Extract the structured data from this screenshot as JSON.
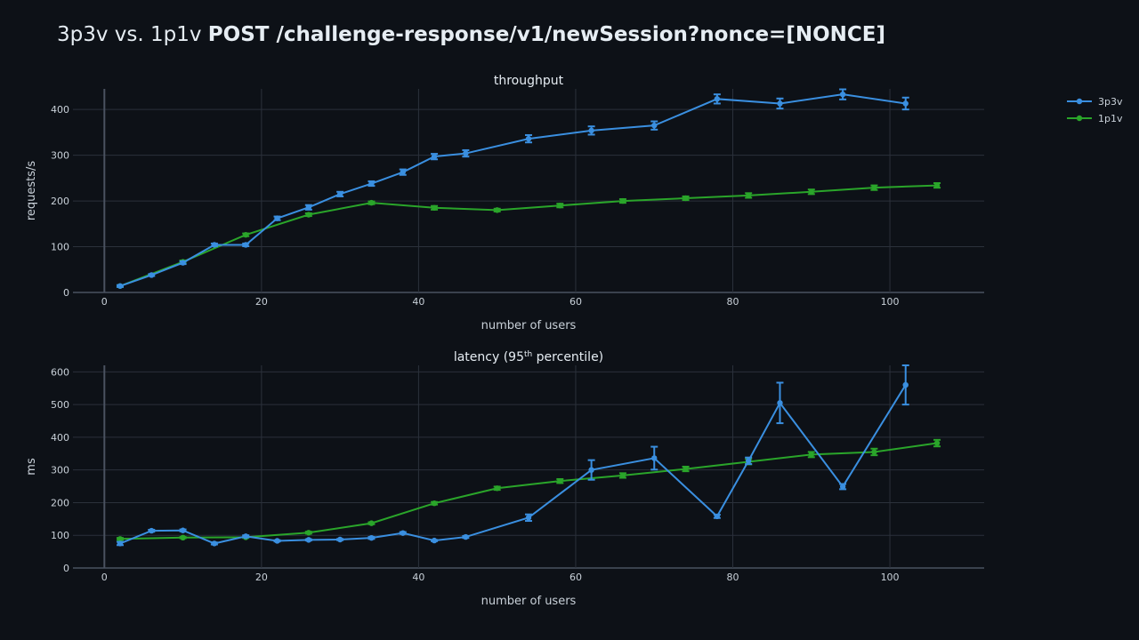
{
  "title": {
    "prefix": "3p3v vs. 1p1v",
    "endpoint": "POST /challenge-response/v1/newSession?nonce=[NONCE]"
  },
  "colors": {
    "background": "#0d1117",
    "grid": "#2b313b",
    "zeroline": "#4a5260",
    "3p3v": "#3a8fe0",
    "1p1v": "#2aa52a"
  },
  "legend": [
    "3p3v",
    "1p1v"
  ],
  "chart_data": [
    {
      "type": "line",
      "title": "throughput",
      "xlabel": "number of users",
      "ylabel": "requests/s",
      "xlim": [
        -4,
        112
      ],
      "ylim": [
        0,
        445
      ],
      "xticks": [
        0,
        20,
        40,
        60,
        80,
        100
      ],
      "yticks": [
        0,
        100,
        200,
        300,
        400
      ],
      "grid": true,
      "legend_position": "top-right",
      "series": [
        {
          "name": "3p3v",
          "x": [
            2,
            6,
            10,
            14,
            18,
            22,
            26,
            30,
            34,
            38,
            42,
            46,
            54,
            62,
            70,
            78,
            86,
            94,
            102
          ],
          "y": [
            14,
            38,
            65,
            104,
            104,
            162,
            186,
            215,
            238,
            263,
            297,
            304,
            336,
            354,
            365,
            423,
            413,
            433,
            413
          ],
          "error": [
            2,
            2,
            3,
            3,
            3,
            4,
            5,
            5,
            5,
            6,
            6,
            7,
            8,
            9,
            9,
            10,
            11,
            11,
            13
          ]
        },
        {
          "name": "1p1v",
          "x": [
            2,
            10,
            18,
            26,
            34,
            42,
            50,
            58,
            66,
            74,
            82,
            90,
            98,
            106
          ],
          "y": [
            14,
            67,
            126,
            170,
            196,
            185,
            180,
            190,
            200,
            206,
            212,
            220,
            229,
            234
          ],
          "error": [
            2,
            3,
            3,
            3,
            3,
            4,
            3,
            4,
            4,
            4,
            5,
            5,
            5,
            5
          ]
        }
      ]
    },
    {
      "type": "line",
      "title": "latency (95",
      "title_sup": "th",
      "title_suffix": " percentile)",
      "xlabel": "number of users",
      "ylabel": "ms",
      "xlim": [
        -4,
        112
      ],
      "ylim": [
        0,
        620
      ],
      "xticks": [
        0,
        20,
        40,
        60,
        80,
        100
      ],
      "yticks": [
        0,
        100,
        200,
        300,
        400,
        500,
        600
      ],
      "grid": true,
      "series": [
        {
          "name": "3p3v",
          "x": [
            2,
            6,
            10,
            14,
            18,
            22,
            26,
            30,
            34,
            38,
            42,
            46,
            54,
            62,
            70,
            78,
            82,
            86,
            94,
            102
          ],
          "y": [
            75,
            114,
            115,
            75,
            97,
            83,
            86,
            87,
            92,
            107,
            84,
            95,
            154,
            300,
            336,
            158,
            328,
            505,
            249,
            560
          ],
          "error": [
            5,
            3,
            3,
            3,
            3,
            2,
            2,
            2,
            3,
            3,
            2,
            3,
            10,
            30,
            35,
            5,
            10,
            62,
            8,
            60
          ]
        },
        {
          "name": "1p1v",
          "x": [
            2,
            10,
            18,
            26,
            34,
            42,
            50,
            58,
            66,
            74,
            82,
            90,
            98,
            106
          ],
          "y": [
            89,
            93,
            94,
            108,
            137,
            198,
            244,
            266,
            283,
            303,
            325,
            347,
            355,
            382
          ],
          "error": [
            3,
            2,
            2,
            3,
            3,
            4,
            5,
            6,
            7,
            7,
            8,
            8,
            10,
            10
          ]
        }
      ]
    }
  ]
}
